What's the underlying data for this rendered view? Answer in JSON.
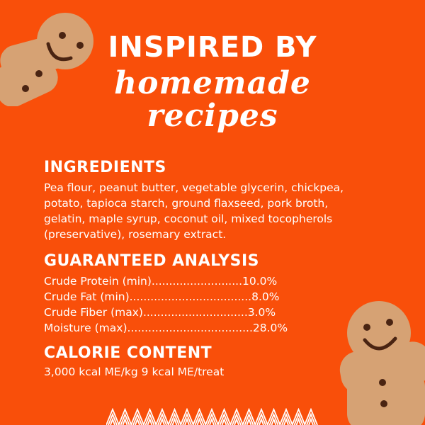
{
  "header": {
    "line1": "INSPIRED BY",
    "line2": "homemade",
    "line3": "recipes"
  },
  "ingredients": {
    "title": "INGREDIENTS",
    "text_lines": [
      "Pea flour, peanut butter, vegetable glycerin, chickpea,",
      "potato, tapioca starch, ground flaxseed, pork broth,",
      "gelatin, maple syrup, coconut oil, mixed tocopherols",
      "(preservative), rosemary extract."
    ]
  },
  "analysis": {
    "title": "GUARANTEED ANALYSIS",
    "rows": [
      "Crude Protein (min)..........................10.0%",
      "Crude Fat (min)...................................8.0%",
      "Crude Fiber (max)..............................3.0%",
      "Moisture (max)....................................28.0%"
    ]
  },
  "calorie": {
    "title": "CALORIE CONTENT",
    "text": "3,000 kcal ME/kg 9 kcal ME/treat"
  },
  "colors": {
    "background": "#f94f0a",
    "text": "#ffffff",
    "cookie": "#d9a577"
  },
  "decorations": [
    "gingerbread-cookie",
    "gingerbread-cookie",
    "zigzag-pattern"
  ]
}
